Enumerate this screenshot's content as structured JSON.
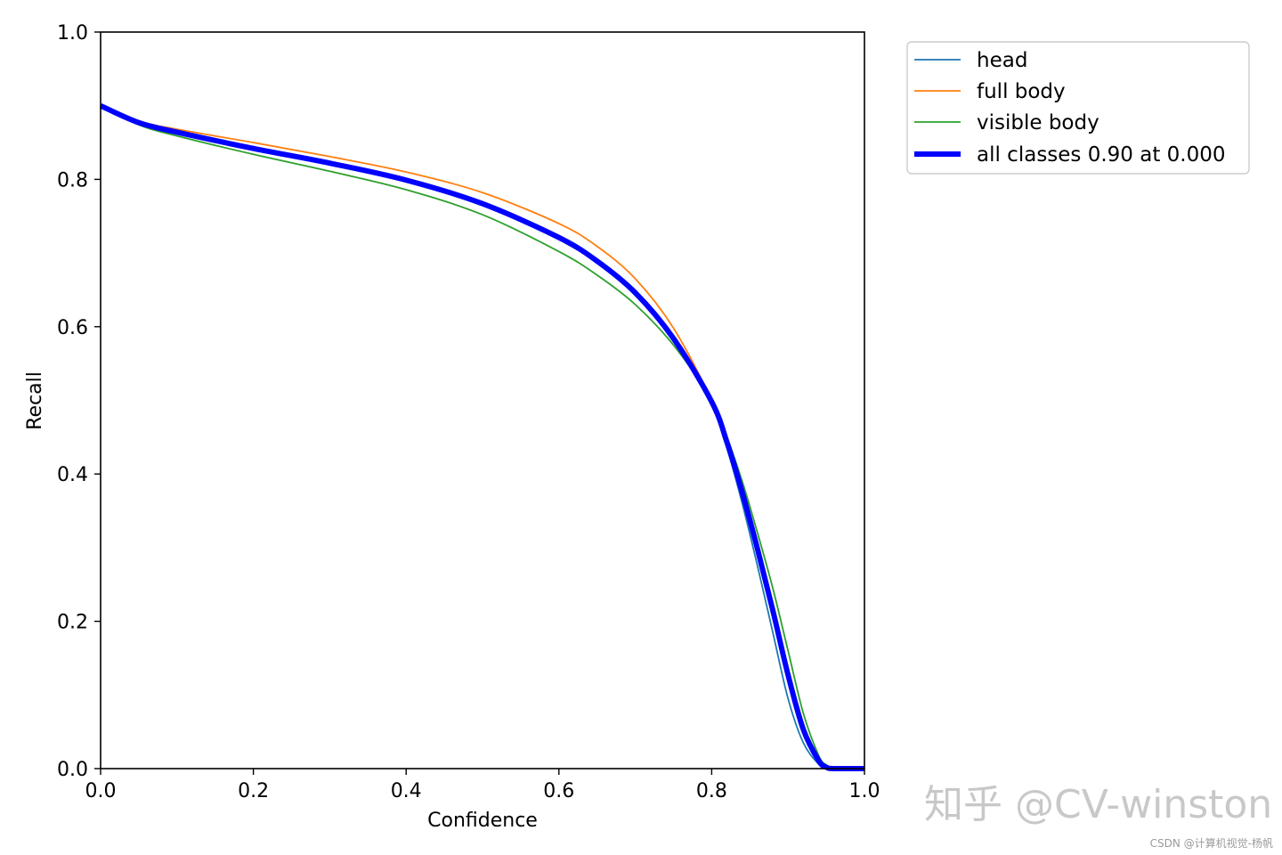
{
  "chart_data": {
    "type": "line",
    "xlabel": "Confidence",
    "ylabel": "Recall",
    "xlim": [
      0,
      1
    ],
    "ylim": [
      0,
      1
    ],
    "xticks": [
      "0.0",
      "0.2",
      "0.4",
      "0.6",
      "0.8",
      "1.0"
    ],
    "yticks": [
      "0.0",
      "0.2",
      "0.4",
      "0.6",
      "0.8",
      "1.0"
    ],
    "grid": false,
    "legend_position": "outside-top-right",
    "series": [
      {
        "name": "head",
        "color": "#1f77b4",
        "x": [
          0.0,
          0.05,
          0.1,
          0.2,
          0.3,
          0.4,
          0.5,
          0.6,
          0.65,
          0.7,
          0.75,
          0.8,
          0.82,
          0.84,
          0.86,
          0.88,
          0.9,
          0.92,
          0.94,
          0.95,
          0.96,
          1.0
        ],
        "y": [
          0.9,
          0.877,
          0.864,
          0.843,
          0.823,
          0.8,
          0.767,
          0.72,
          0.687,
          0.643,
          0.58,
          0.495,
          0.435,
          0.36,
          0.275,
          0.185,
          0.095,
          0.035,
          0.006,
          0.0,
          0.0,
          0.0
        ]
      },
      {
        "name": "full body",
        "color": "#ff7f0e",
        "x": [
          0.0,
          0.05,
          0.1,
          0.2,
          0.3,
          0.4,
          0.5,
          0.6,
          0.65,
          0.7,
          0.75,
          0.8,
          0.82,
          0.84,
          0.86,
          0.88,
          0.9,
          0.92,
          0.94,
          0.95,
          0.96,
          1.0
        ],
        "y": [
          0.9,
          0.879,
          0.868,
          0.85,
          0.831,
          0.81,
          0.782,
          0.74,
          0.709,
          0.665,
          0.598,
          0.5,
          0.445,
          0.375,
          0.3,
          0.215,
          0.125,
          0.05,
          0.01,
          0.002,
          0.0,
          0.0
        ]
      },
      {
        "name": "visible body",
        "color": "#2ca02c",
        "x": [
          0.0,
          0.05,
          0.1,
          0.2,
          0.3,
          0.4,
          0.5,
          0.6,
          0.65,
          0.7,
          0.75,
          0.8,
          0.82,
          0.84,
          0.86,
          0.88,
          0.9,
          0.92,
          0.94,
          0.95,
          0.96,
          1.0
        ],
        "y": [
          0.9,
          0.874,
          0.859,
          0.834,
          0.811,
          0.786,
          0.752,
          0.702,
          0.67,
          0.63,
          0.575,
          0.5,
          0.45,
          0.39,
          0.32,
          0.245,
          0.16,
          0.075,
          0.018,
          0.005,
          0.0,
          0.0
        ]
      },
      {
        "name": "all classes 0.90 at 0.000",
        "color": "#0000ff",
        "x": [
          0.0,
          0.05,
          0.1,
          0.2,
          0.3,
          0.4,
          0.5,
          0.6,
          0.65,
          0.7,
          0.75,
          0.8,
          0.82,
          0.84,
          0.86,
          0.88,
          0.9,
          0.92,
          0.94,
          0.95,
          0.96,
          1.0
        ],
        "y": [
          0.9,
          0.877,
          0.864,
          0.842,
          0.822,
          0.799,
          0.767,
          0.721,
          0.689,
          0.646,
          0.584,
          0.498,
          0.443,
          0.375,
          0.298,
          0.215,
          0.127,
          0.053,
          0.011,
          0.002,
          0.0,
          0.0
        ]
      }
    ]
  },
  "watermark": {
    "main": "知乎 @CV-winston",
    "small": "CSDN @计算机视觉-杨帆"
  }
}
